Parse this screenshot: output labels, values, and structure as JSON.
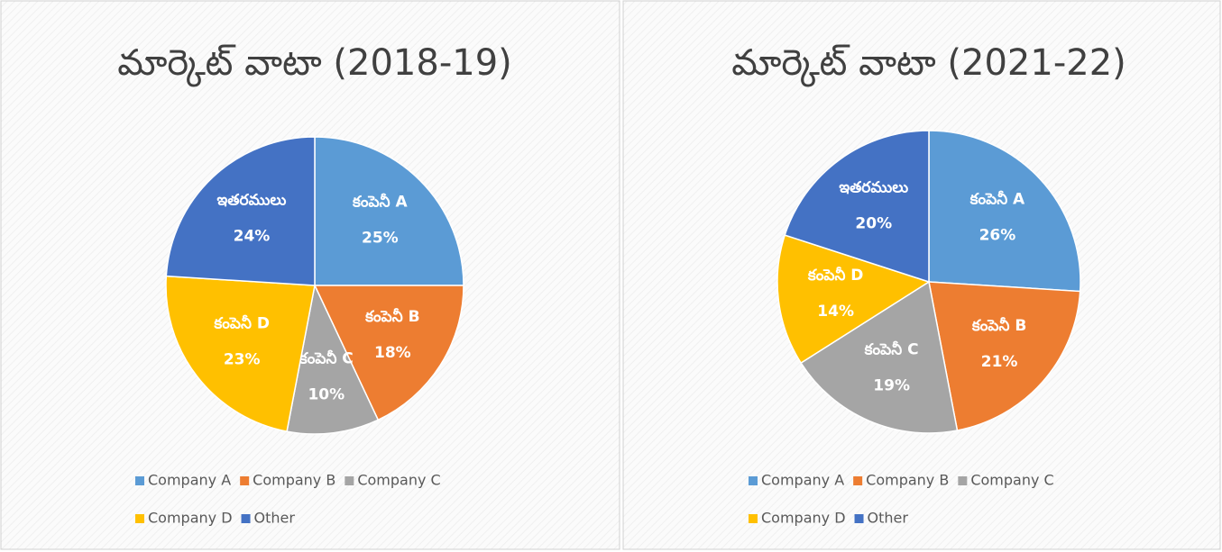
{
  "chart_data": [
    {
      "type": "pie",
      "title": "మార్కెట్ వాటా (2018-19)",
      "categories": [
        "Company A",
        "Company B",
        "Company C",
        "Company D",
        "Other"
      ],
      "slice_labels": [
        "కంపెనీ A",
        "కంపెనీ B",
        "కంపెనీ C",
        "కంపెనీ D",
        "ఇతరములు"
      ],
      "values": [
        25,
        18,
        10,
        23,
        24
      ],
      "value_labels": [
        "25%",
        "18%",
        "10%",
        "23%",
        "24%"
      ],
      "colors": [
        "#5b9bd5",
        "#ed7d31",
        "#a5a5a5",
        "#ffc000",
        "#4472c4"
      ]
    },
    {
      "type": "pie",
      "title": "మార్కెట్ వాటా (2021-22)",
      "categories": [
        "Company A",
        "Company B",
        "Company C",
        "Company D",
        "Other"
      ],
      "slice_labels": [
        "కంపెనీ A",
        "కంపెనీ B",
        "కంపెనీ C",
        "కంపెనీ D",
        "ఇతరములు"
      ],
      "values": [
        26,
        21,
        19,
        14,
        20
      ],
      "value_labels": [
        "26%",
        "21%",
        "19%",
        "14%",
        "20%"
      ],
      "colors": [
        "#5b9bd5",
        "#ed7d31",
        "#a5a5a5",
        "#ffc000",
        "#4472c4"
      ]
    }
  ]
}
